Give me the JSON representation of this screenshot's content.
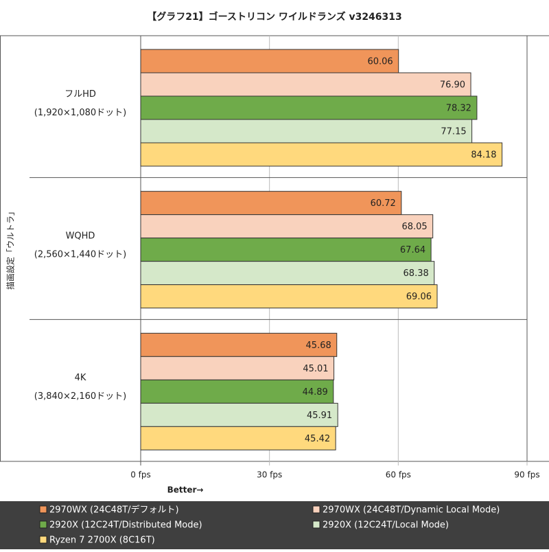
{
  "chart_data": {
    "type": "bar",
    "orientation": "horizontal",
    "title": "【グラフ21】ゴーストリコン ワイルドランズ v3246313",
    "y_label": "描画設定「ウルトラ」",
    "x_label": "Better→",
    "categories": [
      "フルHD",
      "WQHD",
      "4K"
    ],
    "category_resolutions": [
      "(1,920×1,080ドット)",
      "(2,560×1,440ドット)",
      "(3,840×2,160ドット)"
    ],
    "xlim": [
      0,
      90
    ],
    "xticks": [
      {
        "value": 0,
        "label": "0 fps"
      },
      {
        "value": 30,
        "label": "30 fps"
      },
      {
        "value": 60,
        "label": "60 fps"
      },
      {
        "value": 90,
        "label": "90 fps"
      }
    ],
    "grid": true,
    "series": [
      {
        "name": "2970WX (24C48T/デフォルト)",
        "color": "#f0955a",
        "values": [
          60.06,
          60.72,
          45.68
        ],
        "value_labels": [
          "60.06",
          "60.72",
          "45.68"
        ]
      },
      {
        "name": "2970WX (24C48T/Dynamic Local Mode)",
        "color": "#f9d2bd",
        "values": [
          76.9,
          68.05,
          45.01
        ],
        "value_labels": [
          "76.90",
          "68.05",
          "45.01"
        ]
      },
      {
        "name": "2920X (12C24T/Distributed Mode)",
        "color": "#6fab4a",
        "values": [
          78.32,
          67.64,
          44.89
        ],
        "value_labels": [
          "78.32",
          "67.64",
          "44.89"
        ]
      },
      {
        "name": "2920X (12C24T/Local Mode)",
        "color": "#d5e8c9",
        "values": [
          77.15,
          68.38,
          45.91
        ],
        "value_labels": [
          "77.15",
          "68.38",
          "45.91"
        ]
      },
      {
        "name": "Ryzen 7 2700X (8C16T)",
        "color": "#ffd97d",
        "values": [
          84.18,
          69.06,
          45.42
        ],
        "value_labels": [
          "84.18",
          "69.06",
          "45.42"
        ]
      }
    ]
  }
}
